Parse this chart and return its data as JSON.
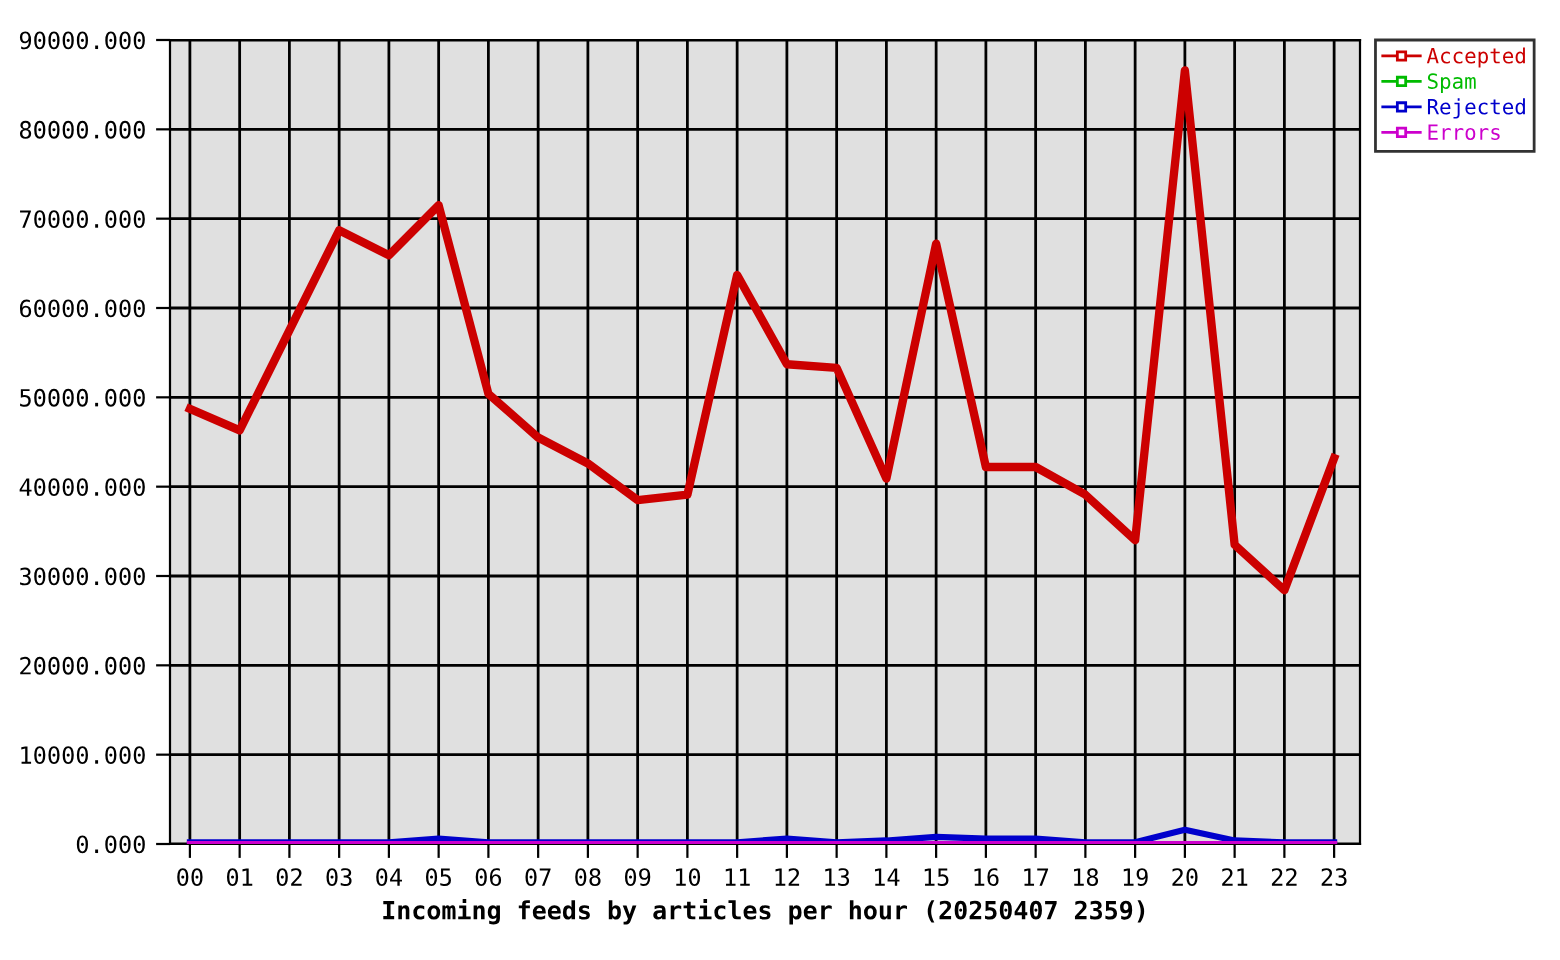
{
  "chart_data": {
    "type": "line",
    "xlabel": "Incoming feeds by articles per hour (20250407 2359)",
    "categories": [
      "00",
      "01",
      "02",
      "03",
      "04",
      "05",
      "06",
      "07",
      "08",
      "09",
      "10",
      "11",
      "12",
      "13",
      "14",
      "15",
      "16",
      "17",
      "18",
      "19",
      "20",
      "21",
      "22",
      "23"
    ],
    "series": [
      {
        "name": "Accepted",
        "color": "#cc0000",
        "values": [
          48700,
          46300,
          57500,
          68700,
          65900,
          71500,
          50400,
          45500,
          42600,
          38500,
          39100,
          63700,
          53700,
          53300,
          40900,
          67200,
          42200,
          42200,
          39100,
          34000,
          86600,
          33500,
          28400,
          43200
        ]
      },
      {
        "name": "Spam",
        "color": "#00bb00",
        "values": [
          null,
          null,
          null,
          null,
          null,
          null,
          null,
          null,
          null,
          null,
          null,
          null,
          null,
          null,
          null,
          null,
          null,
          null,
          null,
          null,
          null,
          null,
          null,
          null
        ]
      },
      {
        "name": "Rejected",
        "color": "#0000cc",
        "values": [
          200,
          200,
          200,
          200,
          200,
          600,
          200,
          200,
          200,
          200,
          200,
          200,
          600,
          200,
          400,
          800,
          600,
          600,
          200,
          200,
          1600,
          400,
          200,
          200
        ]
      },
      {
        "name": "Errors",
        "color": "#cc00cc",
        "values": [
          0,
          0,
          0,
          0,
          0,
          0,
          0,
          0,
          0,
          0,
          0,
          0,
          0,
          0,
          0,
          0,
          0,
          0,
          0,
          0,
          0,
          0,
          0,
          0
        ]
      }
    ],
    "ylim": [
      0,
      90000
    ],
    "yticks": [
      {
        "value": 0,
        "label": "0.000"
      },
      {
        "value": 10000,
        "label": "10000.000"
      },
      {
        "value": 20000,
        "label": "20000.000"
      },
      {
        "value": 30000,
        "label": "30000.000"
      },
      {
        "value": 40000,
        "label": "40000.000"
      },
      {
        "value": 50000,
        "label": "50000.000"
      },
      {
        "value": 60000,
        "label": "60000.000"
      },
      {
        "value": 70000,
        "label": "70000.000"
      },
      {
        "value": 80000,
        "label": "80000.000"
      },
      {
        "value": 90000,
        "label": "90000.000"
      }
    ],
    "grid": true,
    "legend": "top right",
    "marker": "none",
    "line_style": "solid"
  }
}
